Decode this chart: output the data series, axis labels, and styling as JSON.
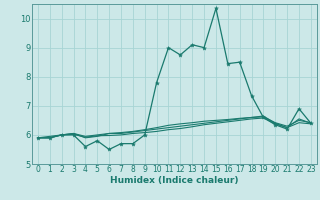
{
  "xlabel": "Humidex (Indice chaleur)",
  "ylabel": "",
  "bg_color": "#cce8e8",
  "grid_color": "#a8d4d4",
  "line_color": "#1a7a6e",
  "xlim": [
    -0.5,
    23.5
  ],
  "ylim": [
    5,
    10.5
  ],
  "yticks": [
    5,
    6,
    7,
    8,
    9,
    10
  ],
  "xticks": [
    0,
    1,
    2,
    3,
    4,
    5,
    6,
    7,
    8,
    9,
    10,
    11,
    12,
    13,
    14,
    15,
    16,
    17,
    18,
    19,
    20,
    21,
    22,
    23
  ],
  "line1_x": [
    0,
    1,
    2,
    3,
    4,
    5,
    6,
    7,
    8,
    9,
    10,
    11,
    12,
    13,
    14,
    15,
    16,
    17,
    18,
    19,
    20,
    21,
    22,
    23
  ],
  "line1_y": [
    5.9,
    5.9,
    6.0,
    6.0,
    5.6,
    5.8,
    5.5,
    5.7,
    5.7,
    6.0,
    7.8,
    9.0,
    8.75,
    9.1,
    9.0,
    10.35,
    8.45,
    8.5,
    7.35,
    6.6,
    6.35,
    6.2,
    6.9,
    6.4
  ],
  "line2_x": [
    0,
    1,
    2,
    3,
    4,
    5,
    6,
    7,
    8,
    9,
    10,
    11,
    12,
    13,
    14,
    15,
    16,
    17,
    18,
    19,
    20,
    21,
    22,
    23
  ],
  "line2_y": [
    5.9,
    5.9,
    6.0,
    6.05,
    5.9,
    5.95,
    6.05,
    6.05,
    6.1,
    6.15,
    6.2,
    6.25,
    6.3,
    6.35,
    6.4,
    6.45,
    6.5,
    6.55,
    6.6,
    6.65,
    6.4,
    6.25,
    6.55,
    6.4
  ],
  "line3_x": [
    0,
    1,
    2,
    3,
    4,
    5,
    6,
    7,
    8,
    9,
    10,
    11,
    12,
    13,
    14,
    15,
    16,
    17,
    18,
    19,
    20,
    21,
    22,
    23
  ],
  "line3_y": [
    5.9,
    5.9,
    6.0,
    6.05,
    5.95,
    6.0,
    6.05,
    6.08,
    6.12,
    6.18,
    6.25,
    6.33,
    6.38,
    6.42,
    6.47,
    6.5,
    6.53,
    6.57,
    6.6,
    6.62,
    6.42,
    6.3,
    6.5,
    6.42
  ],
  "line4_x": [
    0,
    1,
    2,
    3,
    4,
    5,
    6,
    7,
    8,
    9,
    10,
    11,
    12,
    13,
    14,
    15,
    16,
    17,
    18,
    19,
    20,
    21,
    22,
    23
  ],
  "line4_y": [
    5.9,
    5.95,
    6.0,
    6.02,
    5.92,
    5.97,
    5.98,
    6.0,
    6.05,
    6.08,
    6.12,
    6.18,
    6.22,
    6.28,
    6.35,
    6.4,
    6.45,
    6.5,
    6.55,
    6.58,
    6.38,
    6.25,
    6.42,
    6.38
  ],
  "tick_fontsize": 5.5,
  "xlabel_fontsize": 6.5,
  "xlabel_fontweight": "bold"
}
